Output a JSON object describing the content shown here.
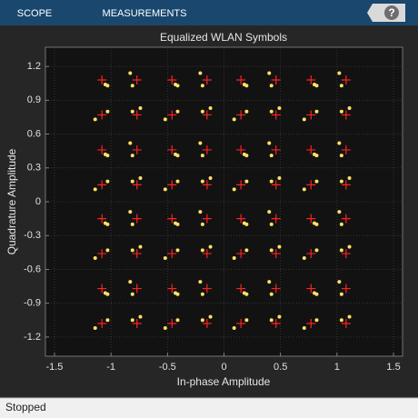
{
  "toolbar": {
    "tabs": [
      "SCOPE",
      "MEASUREMENTS"
    ],
    "help": "?"
  },
  "chart_data": {
    "type": "scatter",
    "title": "Equalized WLAN Symbols",
    "x_label": "In-phase Amplitude",
    "y_label": "Quadrature Amplitude",
    "xlim": [
      -1.58,
      1.58
    ],
    "ylim": [
      -1.37,
      1.37
    ],
    "xticks": [
      -1.5,
      -1,
      -0.5,
      0,
      0.5,
      1,
      1.5
    ],
    "yticks": [
      -1.2,
      -0.9,
      -0.6,
      -0.3,
      0,
      0.3,
      0.6,
      0.9,
      1.2
    ],
    "grid": true,
    "series": [
      {
        "color": "#ffe066",
        "x": [
          -1.03,
          -1.14,
          -0.81,
          -0.74,
          -0.41,
          -0.52,
          -0.19,
          -0.12,
          0.2,
          0.09,
          0.42,
          0.49,
          0.82,
          0.71,
          1.04,
          1.11,
          -1.03,
          -1.05,
          -0.81,
          -0.83,
          -0.41,
          -0.43,
          -0.19,
          -0.21,
          0.2,
          0.18,
          0.42,
          0.4,
          0.82,
          0.8,
          1.04,
          1.02,
          -1.03,
          -1.14,
          -0.81,
          -0.74,
          -0.41,
          -0.52,
          -0.19,
          -0.12,
          0.2,
          0.09,
          0.42,
          0.49,
          0.82,
          0.71,
          1.04,
          1.11,
          -1.03,
          -1.05,
          -0.81,
          -0.83,
          -0.41,
          -0.43,
          -0.19,
          -0.21,
          0.2,
          0.18,
          0.42,
          0.4,
          0.82,
          0.8,
          1.04,
          1.02,
          -1.03,
          -1.14,
          -0.81,
          -0.74,
          -0.41,
          -0.52,
          -0.19,
          -0.12,
          0.2,
          0.09,
          0.42,
          0.49,
          0.82,
          0.71,
          1.04,
          1.11,
          -1.03,
          -1.05,
          -0.81,
          -0.83,
          -0.41,
          -0.43,
          -0.19,
          -0.21,
          0.2,
          0.18,
          0.42,
          0.4,
          0.82,
          0.8,
          1.04,
          1.02,
          -1.03,
          -1.14,
          -0.81,
          -0.74,
          -0.41,
          -0.52,
          -0.19,
          -0.12,
          0.2,
          0.09,
          0.42,
          0.49,
          0.82,
          0.71,
          1.04,
          1.11,
          -1.03,
          -1.05,
          -0.81,
          -0.83,
          -0.41,
          -0.43,
          -0.19,
          -0.21,
          0.2,
          0.18,
          0.42,
          0.4,
          0.82,
          0.8,
          1.04,
          1.02
        ],
        "values": [
          -1.05,
          -1.12,
          -1.05,
          -1.02,
          -1.05,
          -1.12,
          -1.05,
          -1.02,
          -1.05,
          -1.12,
          -1.05,
          -1.02,
          -1.05,
          -1.12,
          -1.05,
          -1.02,
          -0.82,
          -0.81,
          -0.82,
          -0.71,
          -0.82,
          -0.81,
          -0.82,
          -0.71,
          -0.82,
          -0.81,
          -0.82,
          -0.71,
          -0.82,
          -0.81,
          -0.82,
          -0.71,
          -0.43,
          -0.5,
          -0.43,
          -0.4,
          -0.43,
          -0.5,
          -0.43,
          -0.4,
          -0.43,
          -0.5,
          -0.43,
          -0.4,
          -0.43,
          -0.5,
          -0.43,
          -0.4,
          -0.2,
          -0.19,
          -0.2,
          -0.09,
          -0.2,
          -0.19,
          -0.2,
          -0.09,
          -0.2,
          -0.19,
          -0.2,
          -0.09,
          -0.2,
          -0.19,
          -0.2,
          -0.09,
          0.18,
          0.11,
          0.18,
          0.21,
          0.18,
          0.11,
          0.18,
          0.21,
          0.18,
          0.11,
          0.18,
          0.21,
          0.18,
          0.11,
          0.18,
          0.21,
          0.41,
          0.42,
          0.41,
          0.52,
          0.41,
          0.42,
          0.41,
          0.52,
          0.41,
          0.42,
          0.41,
          0.52,
          0.41,
          0.42,
          0.41,
          0.52,
          0.8,
          0.73,
          0.8,
          0.83,
          0.8,
          0.73,
          0.8,
          0.83,
          0.8,
          0.73,
          0.8,
          0.83,
          0.8,
          0.73,
          0.8,
          0.83,
          1.03,
          1.04,
          1.03,
          1.14,
          1.03,
          1.04,
          1.03,
          1.14,
          1.03,
          1.04,
          1.03,
          1.14,
          1.03,
          1.04,
          1.03,
          1.14
        ]
      }
    ],
    "reference": {
      "color": "#ff2020",
      "levels": [
        -1.08,
        -0.77,
        -0.46,
        -0.15,
        0.15,
        0.46,
        0.77,
        1.08
      ]
    }
  },
  "status": "Stopped"
}
